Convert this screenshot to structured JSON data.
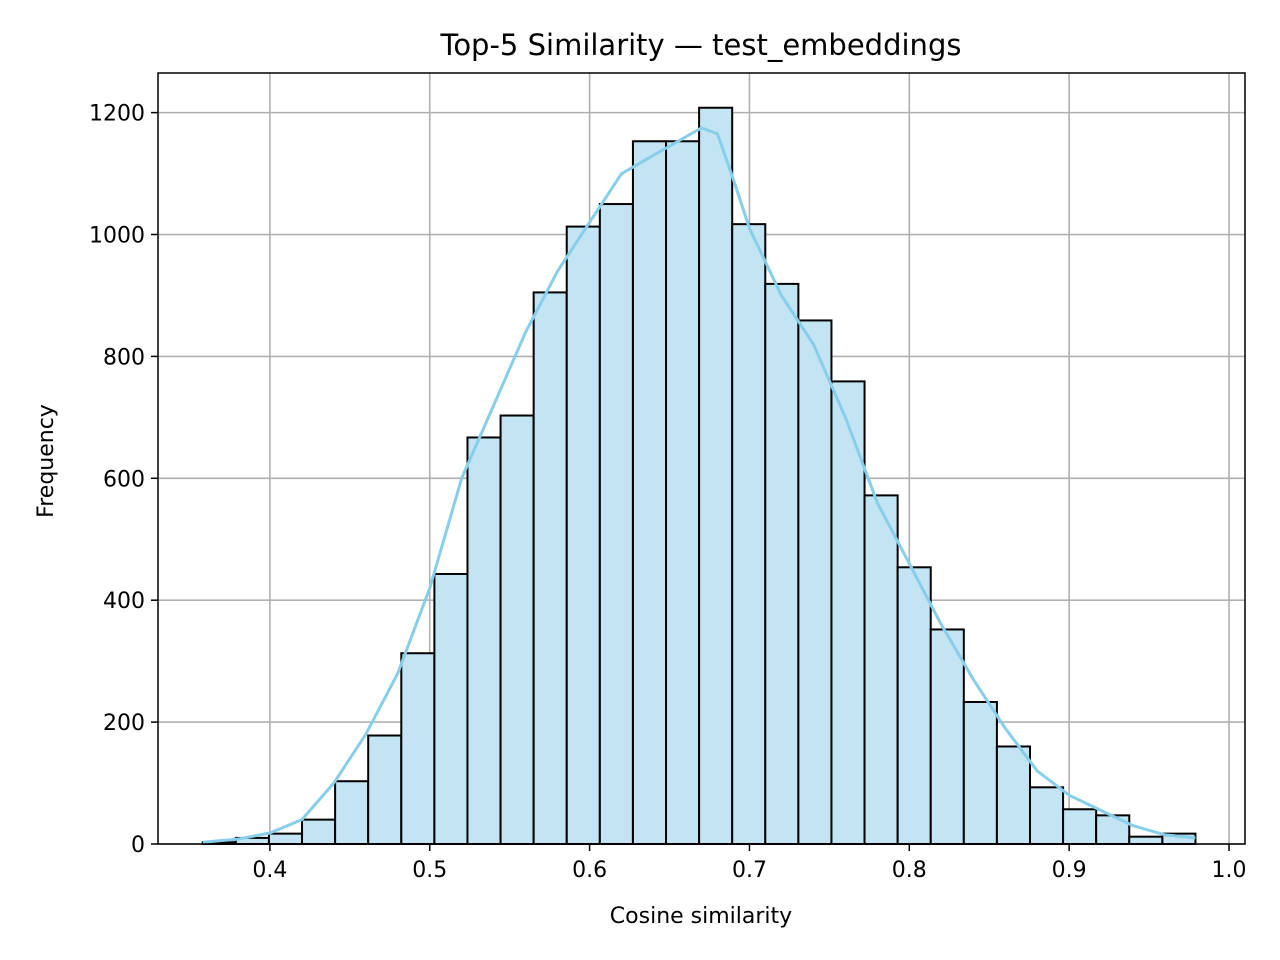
{
  "chart_data": {
    "type": "bar",
    "title": "Top-5 Similarity — test_embeddings",
    "xlabel": "Cosine similarity",
    "ylabel": "Frequency",
    "xlim": [
      0.33,
      1.01
    ],
    "ylim": [
      0,
      1265
    ],
    "grid": true,
    "x_ticks": [
      0.4,
      0.5,
      0.6,
      0.7,
      0.8,
      0.9,
      1.0
    ],
    "x_tick_labels": [
      "0.4",
      "0.5",
      "0.6",
      "0.7",
      "0.8",
      "0.9",
      "1.0"
    ],
    "y_ticks": [
      0,
      200,
      400,
      600,
      800,
      1000,
      1200
    ],
    "y_tick_labels": [
      "0",
      "200",
      "400",
      "600",
      "800",
      "1000",
      "1200"
    ],
    "bin_edges": [
      0.358,
      0.3787,
      0.3994,
      0.4201,
      0.4408,
      0.4615,
      0.4822,
      0.5029,
      0.5236,
      0.5443,
      0.565,
      0.5857,
      0.6064,
      0.6271,
      0.6478,
      0.6685,
      0.6892,
      0.7099,
      0.7306,
      0.7513,
      0.772,
      0.7927,
      0.8134,
      0.8341,
      0.8548,
      0.8755,
      0.8962,
      0.9169,
      0.9376,
      0.9583,
      0.979
    ],
    "values": [
      3,
      10,
      17,
      40,
      103,
      178,
      313,
      443,
      667,
      703,
      905,
      1013,
      1050,
      1153,
      1153,
      1208,
      1017,
      919,
      859,
      759,
      572,
      454,
      352,
      233,
      160,
      93,
      57,
      47,
      12,
      17
    ],
    "kde": {
      "x": [
        0.358,
        0.38,
        0.4,
        0.42,
        0.44,
        0.46,
        0.48,
        0.5,
        0.52,
        0.54,
        0.56,
        0.58,
        0.6,
        0.62,
        0.64,
        0.66,
        0.67,
        0.68,
        0.69,
        0.7,
        0.72,
        0.74,
        0.76,
        0.78,
        0.8,
        0.82,
        0.84,
        0.86,
        0.88,
        0.9,
        0.92,
        0.94,
        0.96,
        0.979
      ],
      "y": [
        3,
        8,
        18,
        40,
        100,
        180,
        280,
        420,
        600,
        720,
        840,
        940,
        1020,
        1100,
        1130,
        1160,
        1175,
        1165,
        1090,
        1010,
        900,
        820,
        700,
        560,
        460,
        360,
        270,
        190,
        120,
        80,
        55,
        30,
        15,
        10
      ]
    },
    "colors": {
      "bar_fill": "#c3e4f3",
      "bar_edge": "#000000",
      "kde_line": "#87ceeb",
      "grid": "#b0b0b0"
    }
  }
}
